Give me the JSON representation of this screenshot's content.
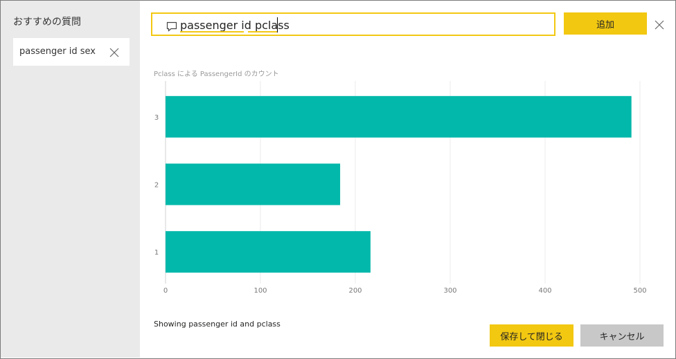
{
  "sidebar": {
    "title": "おすすめの質問",
    "suggestions": [
      {
        "label": "passenger id sex"
      }
    ]
  },
  "question": {
    "value": "passenger id pclass",
    "icon": "chat-bubble-icon"
  },
  "toolbar": {
    "add_label": "追加",
    "close_icon": "close-icon"
  },
  "status_text": "Showing passenger id and pclass",
  "footer": {
    "save_label": "保存して閉じる",
    "cancel_label": "キャンセル"
  },
  "colors": {
    "accent": "#f2c811",
    "bar": "#01b8aa",
    "sidebar_bg": "#eaeaea",
    "cancel_bg": "#c8c8c8"
  },
  "chart_data": {
    "type": "bar",
    "orientation": "horizontal",
    "title": "Pclass による PassengerId のカウント",
    "categories": [
      "3",
      "2",
      "1"
    ],
    "values": [
      491,
      184,
      216
    ],
    "xlim": [
      0,
      500
    ],
    "xticks": [
      0,
      100,
      200,
      300,
      400,
      500
    ],
    "grid": true
  }
}
